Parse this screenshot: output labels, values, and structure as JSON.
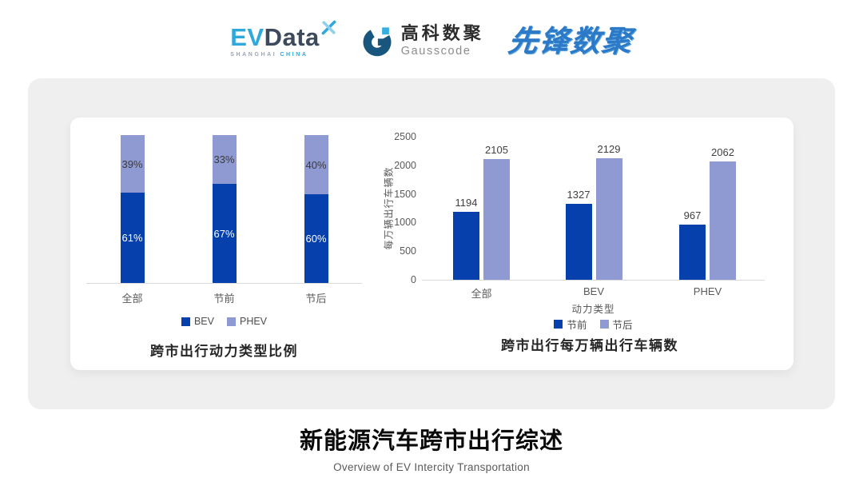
{
  "header": {
    "evdata": {
      "ev": "EV",
      "data": "Data",
      "sub_left": "SHANGHAI",
      "sub_right": "CHINA"
    },
    "gausscode": {
      "cn": "高科数聚",
      "en": "Gausscode"
    },
    "pioneer": {
      "text": "先锋数聚"
    }
  },
  "footer": {
    "title": "新能源汽车跨市出行综述",
    "subtitle": "Overview of EV Intercity Transportation"
  },
  "colors": {
    "bev_dark_blue": "#0540ac",
    "phev_light_blue": "#8f9ad2",
    "panel_bg": "#efefef",
    "axis_text": "#595959",
    "baseline": "#d9d9d9"
  },
  "chart_data": [
    {
      "type": "bar",
      "subtype": "stacked-percent",
      "title": "跨市出行动力类型比例",
      "categories": [
        "全部",
        "节前",
        "节后"
      ],
      "series": [
        {
          "name": "BEV",
          "color": "#0540ac",
          "values": [
            61,
            67,
            60
          ],
          "unit": "%"
        },
        {
          "name": "PHEV",
          "color": "#8f9ad2",
          "values": [
            39,
            33,
            40
          ],
          "unit": "%"
        }
      ],
      "ylim": [
        0,
        100
      ],
      "grid": false,
      "legend_position": "bottom"
    },
    {
      "type": "bar",
      "subtype": "grouped",
      "title": "跨市出行每万辆出行车辆数",
      "xlabel": "动力类型",
      "ylabel": "每万辆出行车辆数",
      "categories": [
        "全部",
        "BEV",
        "PHEV"
      ],
      "series": [
        {
          "name": "节前",
          "color": "#0540ac",
          "values": [
            1194,
            1327,
            967
          ]
        },
        {
          "name": "节后",
          "color": "#8f9ad2",
          "values": [
            2105,
            2129,
            2062
          ]
        }
      ],
      "ylim": [
        0,
        2500
      ],
      "yticks": [
        0,
        500,
        1000,
        1500,
        2000,
        2500
      ],
      "grid": false,
      "legend_position": "bottom"
    }
  ]
}
